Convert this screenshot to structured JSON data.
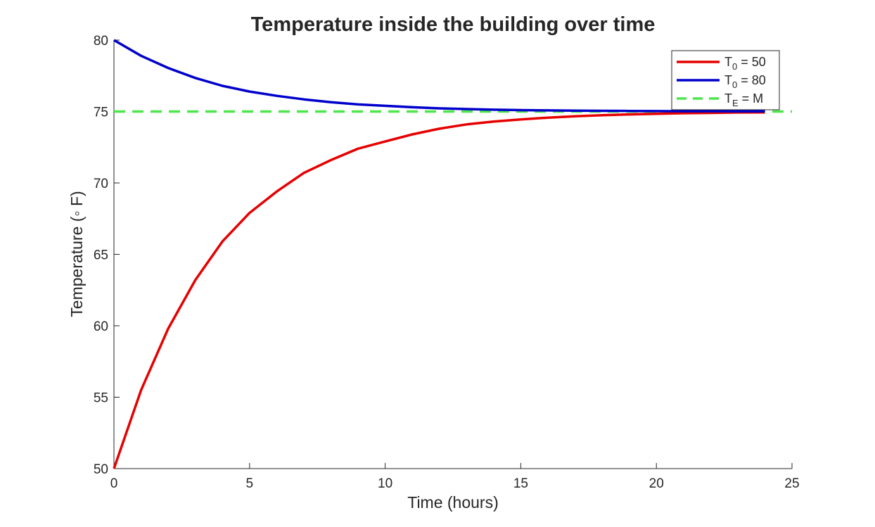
{
  "chart_data": {
    "type": "line",
    "title": "Temperature inside the building over time",
    "xlabel": "Time (hours)",
    "ylabel": "Temperature (◦ F)",
    "xlim": [
      0,
      25
    ],
    "ylim": [
      50,
      80
    ],
    "xticks": [
      "0",
      "5",
      "10",
      "15",
      "20",
      "25"
    ],
    "yticks": [
      "50",
      "55",
      "60",
      "65",
      "70",
      "75",
      "80"
    ],
    "grid": false,
    "legend_position": "top-right",
    "series": [
      {
        "legend": {
          "main": "T",
          "sub": "0",
          "rest": " =  50"
        },
        "color": "#e60000",
        "style": "solid",
        "x": [
          0,
          1,
          2,
          3,
          4,
          5,
          6,
          7,
          8,
          9,
          10,
          11,
          12,
          13,
          14,
          15,
          16,
          17,
          18,
          19,
          20,
          21,
          22,
          23,
          24
        ],
        "y": [
          50.0,
          55.5,
          59.8,
          63.2,
          65.9,
          67.9,
          69.4,
          70.7,
          71.6,
          72.4,
          72.9,
          73.4,
          73.8,
          74.1,
          74.3,
          74.45,
          74.57,
          74.67,
          74.74,
          74.8,
          74.84,
          74.88,
          74.9,
          74.93,
          74.94
        ]
      },
      {
        "legend": {
          "main": "T",
          "sub": "0",
          "rest": " =  80"
        },
        "color": "#0000cc",
        "style": "solid",
        "x": [
          0,
          1,
          2,
          3,
          4,
          5,
          6,
          7,
          8,
          9,
          10,
          11,
          12,
          13,
          14,
          15,
          16,
          17,
          18,
          19,
          20,
          21,
          22,
          23,
          24
        ],
        "y": [
          80.0,
          78.9,
          78.05,
          77.35,
          76.8,
          76.4,
          76.1,
          75.85,
          75.65,
          75.5,
          75.4,
          75.3,
          75.22,
          75.17,
          75.13,
          75.1,
          75.08,
          75.06,
          75.05,
          75.04,
          75.03,
          75.02,
          75.02,
          75.01,
          75.01
        ]
      },
      {
        "legend": {
          "main": "T",
          "sub": "E",
          "rest": " =  M"
        },
        "color": "#4de64d",
        "style": "dashed",
        "x": [
          0,
          25
        ],
        "y": [
          75,
          75
        ]
      }
    ]
  }
}
